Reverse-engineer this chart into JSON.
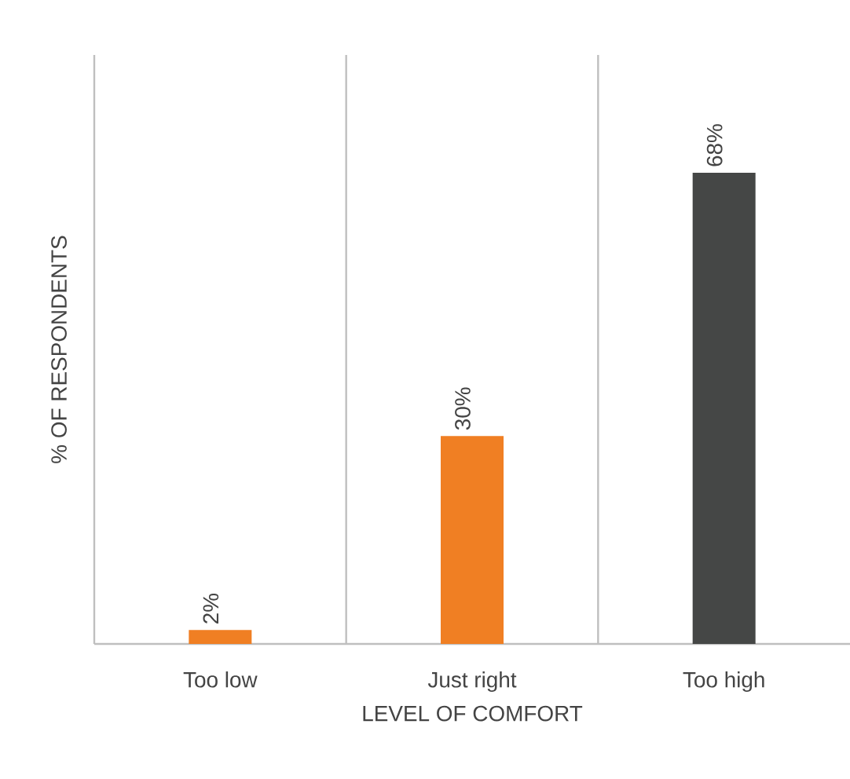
{
  "chart_data": {
    "type": "bar",
    "xlabel": "LEVEL OF COMFORT",
    "ylabel": "% OF RESPONDENTS",
    "categories": [
      "Too low",
      "Just right",
      "Too high"
    ],
    "values": [
      2,
      30,
      68
    ],
    "colors": [
      "#f07f23",
      "#f07f23",
      "#454746"
    ],
    "value_labels": [
      "2%",
      "30%",
      "68%"
    ],
    "grid": "x"
  }
}
